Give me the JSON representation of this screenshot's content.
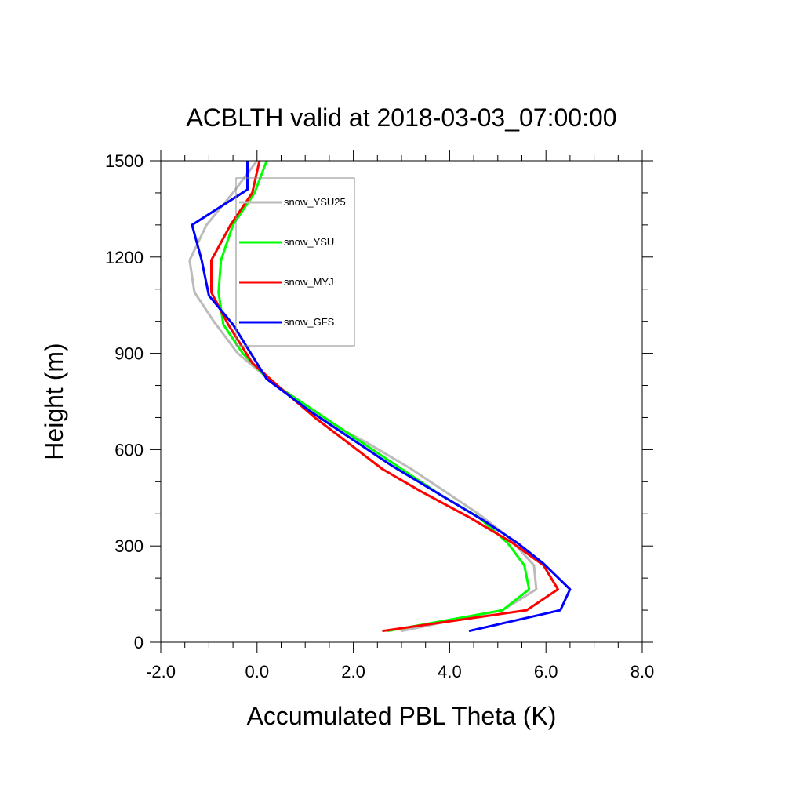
{
  "chart_data": {
    "type": "line",
    "title": "ACBLTH valid at 2018-03-03_07:00:00",
    "xlabel": "Accumulated PBL Theta (K)",
    "ylabel": "Height (m)",
    "xlim": [
      -2.0,
      8.0
    ],
    "ylim": [
      0,
      1500
    ],
    "xticks": [
      -2.0,
      0.0,
      2.0,
      4.0,
      6.0,
      8.0
    ],
    "xtick_labels": [
      "-2.0",
      "0.0",
      "2.0",
      "4.0",
      "6.0",
      "8.0"
    ],
    "yticks": [
      0,
      300,
      600,
      900,
      1200,
      1500
    ],
    "ytick_labels": [
      "0",
      "300",
      "600",
      "900",
      "1200",
      "1500"
    ],
    "grid": false,
    "legend": "top-left",
    "series": [
      {
        "name": "snow_YSU25",
        "color": "#bbbbbb",
        "points": [
          [
            3.0,
            35
          ],
          [
            5.1,
            100
          ],
          [
            5.8,
            165
          ],
          [
            5.75,
            240
          ],
          [
            5.2,
            330
          ],
          [
            4.6,
            400
          ],
          [
            3.9,
            470
          ],
          [
            3.2,
            540
          ],
          [
            2.3,
            620
          ],
          [
            1.3,
            700
          ],
          [
            0.4,
            800
          ],
          [
            -0.4,
            900
          ],
          [
            -0.9,
            1000
          ],
          [
            -1.3,
            1090
          ],
          [
            -1.4,
            1190
          ],
          [
            -1.05,
            1300
          ],
          [
            -0.5,
            1400
          ],
          [
            0.0,
            1500
          ]
        ]
      },
      {
        "name": "snow_YSU",
        "color": "#00ff00",
        "points": [
          [
            2.7,
            35
          ],
          [
            5.1,
            100
          ],
          [
            5.65,
            165
          ],
          [
            5.55,
            240
          ],
          [
            5.2,
            310
          ],
          [
            4.6,
            390
          ],
          [
            3.8,
            460
          ],
          [
            2.9,
            550
          ],
          [
            2.1,
            630
          ],
          [
            1.2,
            720
          ],
          [
            0.3,
            810
          ],
          [
            -0.3,
            900
          ],
          [
            -0.7,
            990
          ],
          [
            -0.8,
            1090
          ],
          [
            -0.75,
            1190
          ],
          [
            -0.5,
            1300
          ],
          [
            -0.05,
            1400
          ],
          [
            0.2,
            1500
          ]
        ]
      },
      {
        "name": "snow_MYJ",
        "color": "#ff0000",
        "points": [
          [
            2.6,
            35
          ],
          [
            5.6,
            100
          ],
          [
            6.25,
            165
          ],
          [
            5.95,
            240
          ],
          [
            5.3,
            310
          ],
          [
            4.4,
            390
          ],
          [
            3.4,
            470
          ],
          [
            2.6,
            540
          ],
          [
            1.9,
            620
          ],
          [
            1.2,
            700
          ],
          [
            0.5,
            790
          ],
          [
            -0.1,
            870
          ],
          [
            -0.6,
            990
          ],
          [
            -0.95,
            1090
          ],
          [
            -0.95,
            1190
          ],
          [
            -0.55,
            1300
          ],
          [
            -0.1,
            1400
          ],
          [
            0.05,
            1500
          ]
        ]
      },
      {
        "name": "snow_GFS",
        "color": "#0000ff",
        "points": [
          [
            4.4,
            35
          ],
          [
            6.3,
            100
          ],
          [
            6.5,
            165
          ],
          [
            5.95,
            245
          ],
          [
            5.4,
            310
          ],
          [
            4.7,
            380
          ],
          [
            3.8,
            460
          ],
          [
            2.8,
            550
          ],
          [
            2.0,
            630
          ],
          [
            1.1,
            720
          ],
          [
            0.2,
            820
          ],
          [
            -0.5,
            990
          ],
          [
            -1.0,
            1080
          ],
          [
            -1.15,
            1190
          ],
          [
            -1.35,
            1300
          ],
          [
            -0.2,
            1410
          ],
          [
            -0.2,
            1500
          ]
        ]
      }
    ]
  }
}
